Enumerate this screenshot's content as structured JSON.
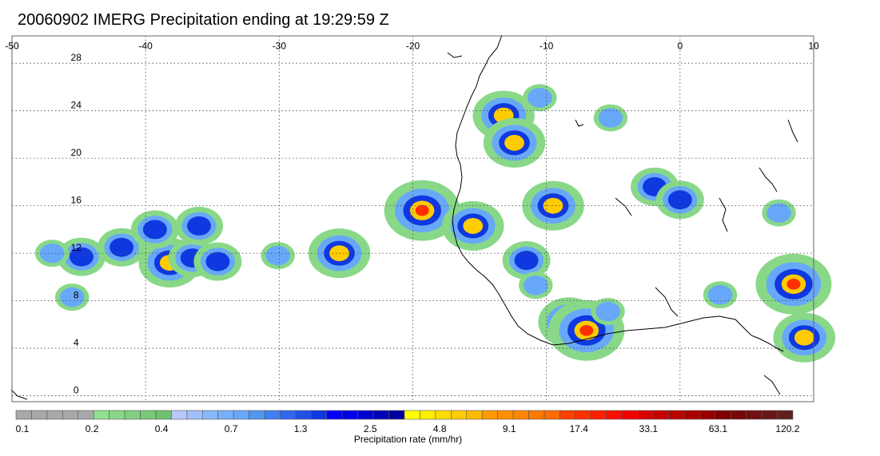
{
  "title": "20060902 IMERG Precipitation ending at 19:29:59 Z",
  "map": {
    "lon_range": [
      -50,
      10
    ],
    "lat_range": [
      -0.5,
      30.3
    ],
    "lon_ticks": [
      "-50",
      "-40",
      "-30",
      "-20",
      "-10",
      "0",
      "10"
    ],
    "lat_ticks": [
      "28",
      "24",
      "20",
      "16",
      "12",
      "8",
      "4",
      "0"
    ],
    "gridlines": "dotted",
    "coastline_color": "#000000",
    "background": "#ffffff"
  },
  "precip_cells": [
    {
      "lon": -38.2,
      "lat": 11.2,
      "intensity": 3
    },
    {
      "lon": -36.5,
      "lat": 11.6,
      "intensity": 2
    },
    {
      "lon": -34.6,
      "lat": 11.3,
      "intensity": 2
    },
    {
      "lon": -41.8,
      "lat": 12.5,
      "intensity": 2
    },
    {
      "lon": -44.8,
      "lat": 11.7,
      "intensity": 2
    },
    {
      "lon": -47.0,
      "lat": 12.0,
      "intensity": 1
    },
    {
      "lon": -45.5,
      "lat": 8.3,
      "intensity": 1
    },
    {
      "lon": -36.0,
      "lat": 14.3,
      "intensity": 2
    },
    {
      "lon": -39.3,
      "lat": 14.0,
      "intensity": 2
    },
    {
      "lon": -30.1,
      "lat": 11.8,
      "intensity": 1
    },
    {
      "lon": -25.5,
      "lat": 12.0,
      "intensity": 3
    },
    {
      "lon": -19.3,
      "lat": 15.6,
      "intensity": 4
    },
    {
      "lon": -15.5,
      "lat": 14.3,
      "intensity": 3
    },
    {
      "lon": -13.2,
      "lat": 23.6,
      "intensity": 3
    },
    {
      "lon": -12.4,
      "lat": 21.3,
      "intensity": 3
    },
    {
      "lon": -10.5,
      "lat": 25.1,
      "intensity": 1
    },
    {
      "lon": -9.5,
      "lat": 16.0,
      "intensity": 3
    },
    {
      "lon": -11.5,
      "lat": 11.4,
      "intensity": 2
    },
    {
      "lon": -10.8,
      "lat": 9.3,
      "intensity": 1
    },
    {
      "lon": -8.3,
      "lat": 6.2,
      "intensity": 3
    },
    {
      "lon": -7.0,
      "lat": 5.5,
      "intensity": 4
    },
    {
      "lon": -5.4,
      "lat": 7.1,
      "intensity": 1
    },
    {
      "lon": -5.2,
      "lat": 23.4,
      "intensity": 1
    },
    {
      "lon": -1.9,
      "lat": 17.6,
      "intensity": 2
    },
    {
      "lon": 0.0,
      "lat": 16.5,
      "intensity": 2
    },
    {
      "lon": 3.0,
      "lat": 8.5,
      "intensity": 1
    },
    {
      "lon": 8.5,
      "lat": 9.4,
      "intensity": 4
    },
    {
      "lon": 7.4,
      "lat": 15.4,
      "intensity": 1
    },
    {
      "lon": 9.3,
      "lat": 4.9,
      "intensity": 3
    }
  ],
  "colorbar": {
    "title": "Precipitation rate (mm/hr)",
    "labels": [
      "0.1",
      "0.2",
      "0.4",
      "0.7",
      "1.3",
      "2.5",
      "4.8",
      "9.1",
      "17.4",
      "33.1",
      "63.1",
      "120.2"
    ],
    "colors": [
      "#a8a8a8",
      "#a8a8a8",
      "#a8a8a8",
      "#a8a8a8",
      "#a8a8a8",
      "#90e090",
      "#88d888",
      "#80d080",
      "#78c878",
      "#70c070",
      "#b8c8f8",
      "#a0c0f8",
      "#88b8f8",
      "#78b0f8",
      "#68a8f8",
      "#5098f0",
      "#4080f0",
      "#3068f0",
      "#2050e8",
      "#1038e0",
      "#0000ff",
      "#0000e8",
      "#0000d0",
      "#0000b8",
      "#0000a0",
      "#ffff00",
      "#ffee00",
      "#ffdd00",
      "#ffcc00",
      "#ffbb00",
      "#ff9900",
      "#ff9000",
      "#ff8400",
      "#ff7800",
      "#ff6c00",
      "#ff4000",
      "#ff3000",
      "#ff2000",
      "#f81000",
      "#f00000",
      "#d80000",
      "#c80000",
      "#b80000",
      "#a80000",
      "#980000",
      "#800000",
      "#780808",
      "#701010",
      "#681818",
      "#602020"
    ]
  }
}
